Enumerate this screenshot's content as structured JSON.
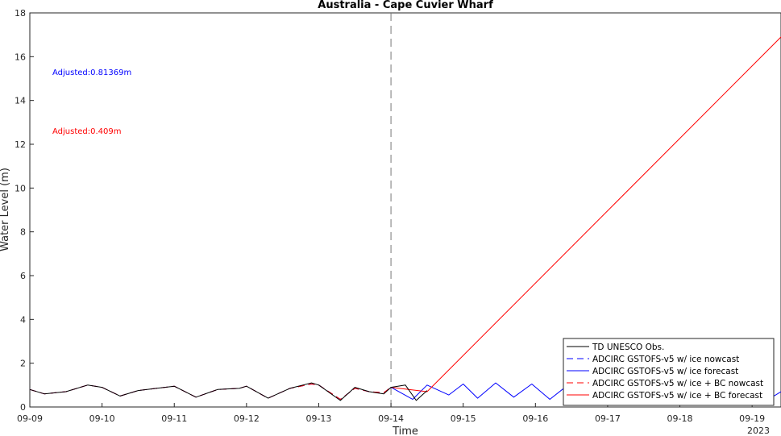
{
  "chart_data": {
    "type": "line",
    "title": "Australia - Cape Cuvier Wharf",
    "xlabel": "Time",
    "ylabel": "Water Level (m)",
    "year_label": "2023",
    "xlim_days": [
      9,
      19.4
    ],
    "ylim": [
      0,
      18
    ],
    "x_ticks": [
      {
        "day": 9,
        "label": "09-09"
      },
      {
        "day": 10,
        "label": "09-10"
      },
      {
        "day": 11,
        "label": "09-11"
      },
      {
        "day": 12,
        "label": "09-12"
      },
      {
        "day": 13,
        "label": "09-13"
      },
      {
        "day": 14,
        "label": "09-14"
      },
      {
        "day": 15,
        "label": "09-15"
      },
      {
        "day": 16,
        "label": "09-16"
      },
      {
        "day": 17,
        "label": "09-17"
      },
      {
        "day": 18,
        "label": "09-18"
      },
      {
        "day": 19,
        "label": "09-19"
      }
    ],
    "y_ticks": [
      0,
      2,
      4,
      6,
      8,
      10,
      12,
      14,
      16,
      18
    ],
    "grid": false,
    "legend_position": "bottom-right",
    "nowcast_marker_day": 14,
    "annotations": [
      {
        "text": "Adjusted:0.81369m",
        "color": "#0000ff"
      },
      {
        "text": "Adjusted:0.409m",
        "color": "#ff0000"
      }
    ],
    "series": [
      {
        "name": "TD UNESCO Obs.",
        "color": "#000000",
        "style": "solid",
        "x": [
          9.0,
          9.2,
          9.5,
          9.8,
          10.0,
          10.25,
          10.5,
          10.75,
          11.0,
          11.3,
          11.6,
          11.9,
          12.0,
          12.3,
          12.6,
          12.9,
          13.0,
          13.3,
          13.5,
          13.7,
          13.9,
          14.0,
          14.2,
          14.35,
          14.5
        ],
        "y": [
          0.8,
          0.6,
          0.7,
          1.0,
          0.9,
          0.5,
          0.75,
          0.85,
          0.95,
          0.45,
          0.8,
          0.85,
          0.95,
          0.4,
          0.85,
          1.1,
          1.0,
          0.3,
          0.9,
          0.7,
          0.6,
          0.9,
          1.0,
          0.3,
          0.75
        ]
      },
      {
        "name": "ADCIRC GSTOFS-v5 w/ ice nowcast",
        "color": "#0000ff",
        "style": "dashed",
        "x": [
          9.0,
          9.2,
          9.5,
          9.8,
          10.0,
          10.25,
          10.5,
          10.75,
          11.0,
          11.3,
          11.6,
          11.9,
          12.0,
          12.3,
          12.6,
          12.9,
          13.0,
          13.3,
          13.5,
          13.7,
          13.9,
          14.0
        ],
        "y": [
          0.8,
          0.6,
          0.7,
          1.0,
          0.9,
          0.5,
          0.75,
          0.85,
          0.95,
          0.45,
          0.8,
          0.85,
          0.95,
          0.4,
          0.85,
          1.05,
          1.0,
          0.35,
          0.85,
          0.7,
          0.65,
          0.9
        ]
      },
      {
        "name": "ADCIRC GSTOFS-v5 w/ ice forecast",
        "color": "#0000ff",
        "style": "solid",
        "x": [
          14.0,
          14.3,
          14.5,
          14.8,
          15.0,
          15.2,
          15.45,
          15.7,
          15.95,
          16.2,
          16.45,
          16.7,
          16.95,
          17.2,
          17.45,
          17.7,
          17.95,
          18.2,
          18.45,
          18.7,
          18.95,
          19.2,
          19.4
        ],
        "y": [
          0.9,
          0.35,
          1.0,
          0.55,
          1.05,
          0.4,
          1.1,
          0.45,
          1.05,
          0.35,
          1.0,
          0.4,
          0.95,
          0.35,
          0.9,
          0.4,
          0.95,
          0.35,
          0.95,
          0.4,
          0.9,
          0.3,
          0.7
        ]
      },
      {
        "name": "ADCIRC GSTOFS-v5 w/ ice + BC nowcast",
        "color": "#ff0000",
        "style": "dashed",
        "x": [
          9.0,
          9.2,
          9.5,
          9.8,
          10.0,
          10.25,
          10.5,
          10.75,
          11.0,
          11.3,
          11.6,
          11.9,
          12.0,
          12.3,
          12.6,
          12.9,
          13.0,
          13.3,
          13.5,
          13.7,
          13.9,
          14.0
        ],
        "y": [
          0.8,
          0.6,
          0.7,
          1.0,
          0.9,
          0.5,
          0.75,
          0.85,
          0.95,
          0.45,
          0.8,
          0.85,
          0.95,
          0.4,
          0.85,
          1.05,
          1.0,
          0.35,
          0.85,
          0.7,
          0.65,
          0.9
        ]
      },
      {
        "name": "ADCIRC GSTOFS-v5 w/ ice + BC forecast",
        "color": "#ff0000",
        "style": "solid",
        "x": [
          14.0,
          14.5,
          19.4
        ],
        "y": [
          0.9,
          0.7,
          16.9
        ]
      }
    ]
  }
}
